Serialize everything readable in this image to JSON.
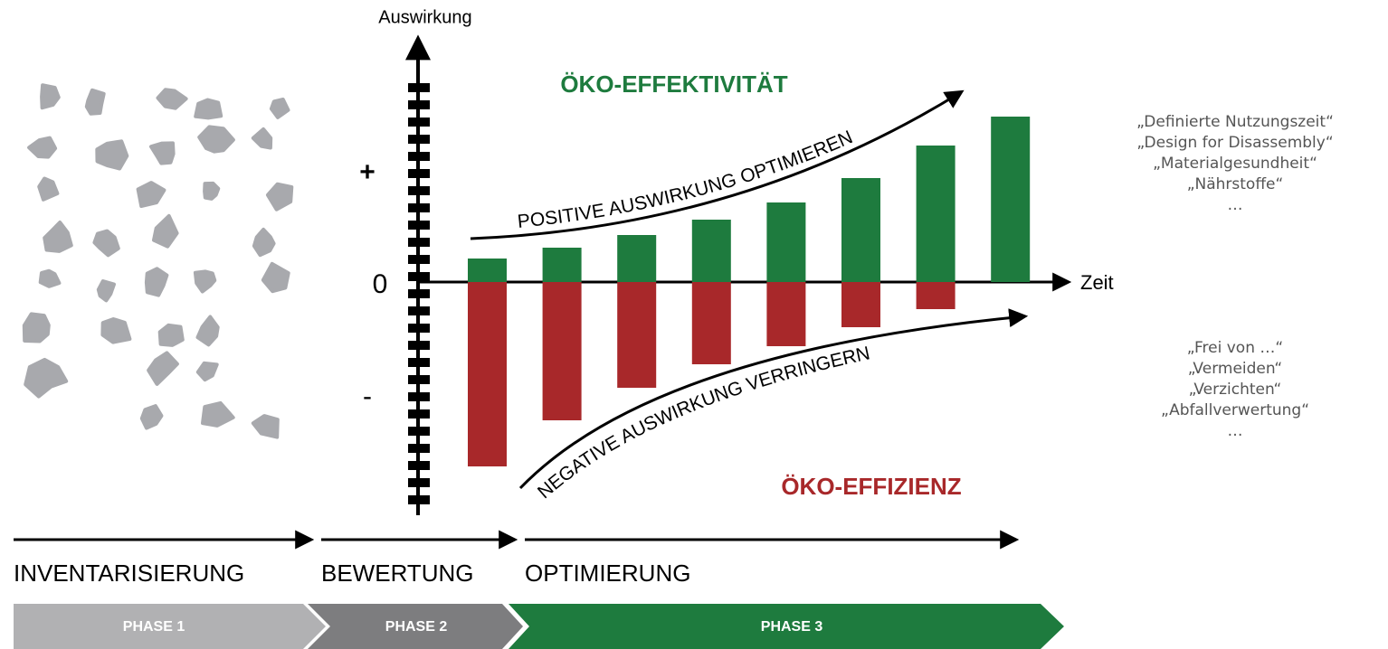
{
  "axis_label_y": "Auswirkung",
  "axis_label_x": "Zeit",
  "plus": "+",
  "zero": "0",
  "minus": "-",
  "effectiveness_label": "ÖKO-EFFEKTIVITÄT",
  "efficiency_label": "ÖKO-EFFIZIENZ",
  "upper_curve_text": "POSITIVE AUSWIRKUNG OPTIMIEREN",
  "lower_curve_text": "NEGATIVE AUSWIRKUNG VERRINGERN",
  "bars": {
    "positive": [
      26,
      38,
      52,
      69,
      88,
      115,
      151,
      183
    ],
    "negative": [
      204,
      153,
      117,
      91,
      71,
      50,
      30,
      0
    ]
  },
  "positive_list": [
    "„Definierte Nutzungszeit“",
    "„Design for Disassembly“",
    "„Materialgesundheit“",
    "„Nährstoffe“",
    "…"
  ],
  "negative_list": [
    "„Frei von …“",
    "„Vermeiden“",
    "„Verzichten“",
    "„Abfallverwertung“",
    "…"
  ],
  "stages": [
    "INVENTARISIERUNG",
    "BEWERTUNG",
    "OPTIMIERUNG"
  ],
  "phases": [
    "PHASE 1",
    "PHASE 2",
    "PHASE 3"
  ]
}
